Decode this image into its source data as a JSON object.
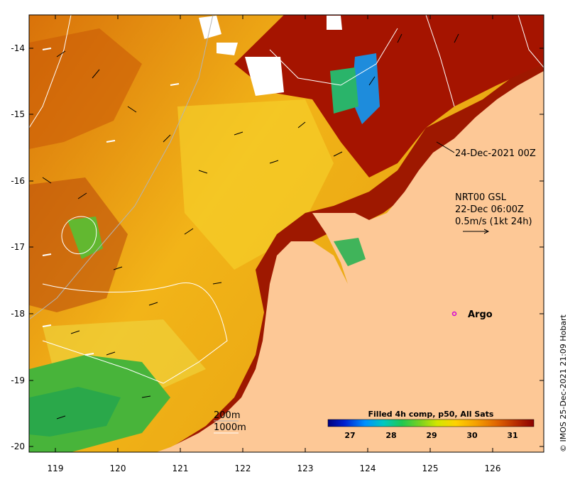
{
  "annotations": {
    "date_label": "24-Dec-2021 00Z",
    "current_source": "NRT00 GSL",
    "current_time": "22-Dec 06:00Z",
    "velocity_scale": "0.5m/s (1kt 24h)",
    "argo_label": "Argo",
    "contour_200": "200m",
    "contour_1000": "1000m",
    "credit": "© IMOS 25-Dec-2021 21:09 Hobart"
  },
  "colorbar": {
    "title": "Filled 4h comp, p50, All Sats",
    "ticks": [
      "27",
      "28",
      "29",
      "30",
      "31"
    ],
    "colors": [
      "#00007f",
      "#0044ff",
      "#00b4ff",
      "#00c896",
      "#3cc83c",
      "#aadc00",
      "#ffdc00",
      "#ffb400",
      "#f08c00",
      "#d25000",
      "#a01400",
      "#8b0000"
    ]
  },
  "axes": {
    "lon_ticks": [
      "119",
      "120",
      "121",
      "122",
      "123",
      "124",
      "125",
      "126"
    ],
    "lat_ticks": [
      "-14",
      "-15",
      "-16",
      "-17",
      "-18",
      "-19",
      "-20"
    ]
  },
  "colors": {
    "land": "#fdc896",
    "warm": "#e08a10",
    "hot": "#a81400",
    "argo": "#d400d4"
  }
}
